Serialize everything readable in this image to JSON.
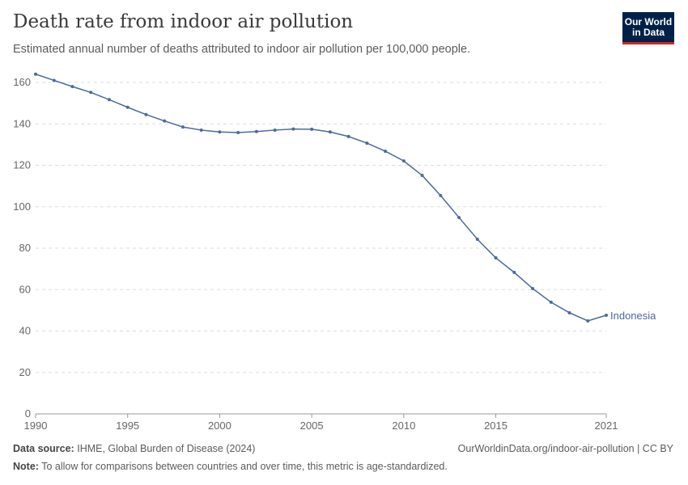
{
  "header": {
    "title": "Death rate from indoor air pollution",
    "subtitle": "Estimated annual number of deaths attributed to indoor air pollution per 100,000 people.",
    "logo_text": "Our World in Data"
  },
  "footer": {
    "source_label": "Data source:",
    "source": "IHME, Global Burden of Disease (2024)",
    "url": "OurWorldinData.org/indoor-air-pollution | CC BY",
    "note_label": "Note:",
    "note": "To allow for comparisons between countries and over time, this metric is age-standardized."
  },
  "chart_data": {
    "type": "line",
    "title": "Death rate from indoor air pollution",
    "xlim": [
      1990,
      2021
    ],
    "ylim": [
      0,
      160
    ],
    "x_ticks": [
      "1990",
      "1995",
      "2000",
      "2005",
      "2010",
      "2015",
      "2021"
    ],
    "y_ticks": [
      "0",
      "20",
      "40",
      "60",
      "80",
      "100",
      "120",
      "140",
      "160"
    ],
    "grid": "horizontal dashed",
    "color": "#4c6a9c",
    "series": [
      {
        "name": "Indonesia",
        "x": [
          1990,
          1991,
          1992,
          1993,
          1994,
          1995,
          1996,
          1997,
          1998,
          1999,
          2000,
          2001,
          2002,
          2003,
          2004,
          2005,
          2006,
          2007,
          2008,
          2009,
          2010,
          2011,
          2012,
          2013,
          2014,
          2015,
          2016,
          2017,
          2018,
          2019,
          2020,
          2021
        ],
        "values": [
          164,
          161,
          158,
          155.2,
          151.7,
          148,
          144.5,
          141.4,
          138.5,
          137,
          136.1,
          135.8,
          136.3,
          137,
          137.5,
          137.4,
          136.1,
          133.9,
          130.7,
          126.8,
          122.1,
          115.1,
          105.4,
          94.8,
          84.3,
          75.3,
          68.3,
          60.5,
          53.9,
          48.8,
          44.9,
          47.6
        ]
      }
    ]
  }
}
